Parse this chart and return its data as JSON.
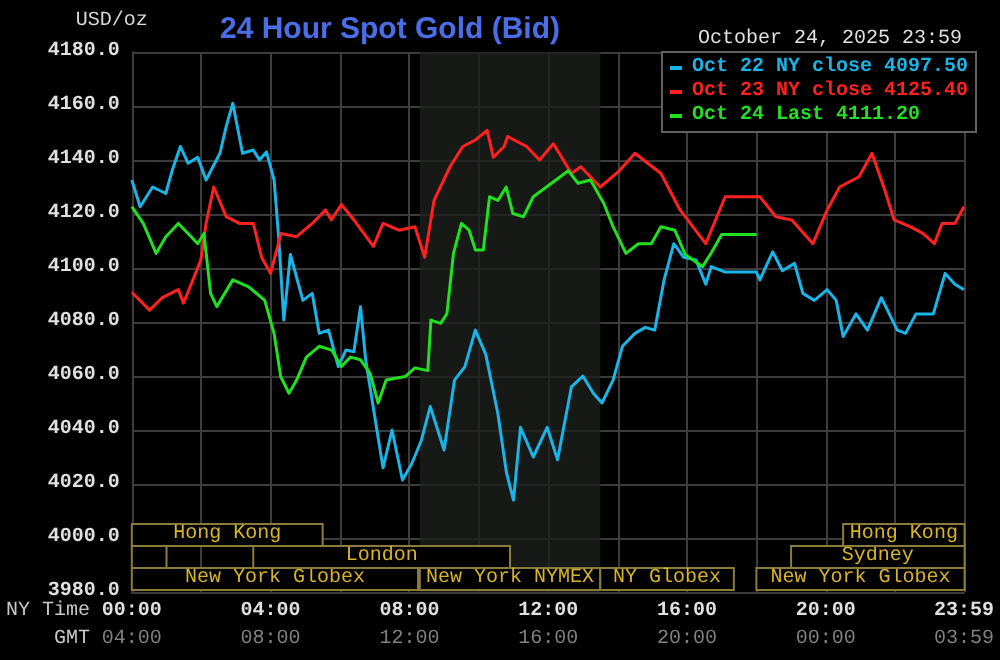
{
  "chart_data": {
    "type": "line",
    "title": "24 Hour Spot Gold (Bid)",
    "subtitle": "October 24, 2025 23:59",
    "ylabel": "USD/oz",
    "xlabel": "NY Time",
    "x2label": "GMT",
    "xlim": [
      0,
      23.983
    ],
    "xticks": [
      {
        "value": 0,
        "label": "00:00"
      },
      {
        "value": 2,
        "label": null
      },
      {
        "value": 4,
        "label": "04:00"
      },
      {
        "value": 6,
        "label": null
      },
      {
        "value": 8,
        "label": "08:00"
      },
      {
        "value": 10,
        "label": null
      },
      {
        "value": 12,
        "label": "12:00"
      },
      {
        "value": 14,
        "label": null
      },
      {
        "value": 16,
        "label": "16:00"
      },
      {
        "value": 18,
        "label": null
      },
      {
        "value": 20,
        "label": "20:00"
      },
      {
        "value": 22,
        "label": null
      },
      {
        "value": 23.983,
        "label": "23:59"
      }
    ],
    "x2lim": [
      "2025-10-24T04:00",
      "2025-10-25T03:59"
    ],
    "x2ticks": [
      {
        "value": "2025-10-24T04:00",
        "label": "04:00"
      },
      {
        "value": "2025-10-24T08:00",
        "label": "08:00"
      },
      {
        "value": "2025-10-24T12:00",
        "label": "12:00"
      },
      {
        "value": "2025-10-24T16:00",
        "label": "16:00"
      },
      {
        "value": "2025-10-24T20:00",
        "label": "20:00"
      },
      {
        "value": "2025-10-25T00:00",
        "label": "00:00"
      },
      {
        "value": "2025-10-25T03:59",
        "label": "03:59"
      }
    ],
    "ylim": [
      3980,
      4180
    ],
    "yticks": [
      {
        "value": 3980,
        "label": "3980.0"
      },
      {
        "value": 4000,
        "label": "4000.0"
      },
      {
        "value": 4020,
        "label": "4020.0"
      },
      {
        "value": 4040,
        "label": "4040.0"
      },
      {
        "value": 4060,
        "label": "4060.0"
      },
      {
        "value": 4080,
        "label": "4080.0"
      },
      {
        "value": 4100,
        "label": "4100.0"
      },
      {
        "value": 4120,
        "label": "4120.0"
      },
      {
        "value": 4140,
        "label": "4140.0"
      },
      {
        "value": 4160,
        "label": "4160.0"
      },
      {
        "value": 4180,
        "label": "4180.0"
      }
    ],
    "grid": true,
    "legend": "top right",
    "marker": "none",
    "line_style": "solid",
    "series": [
      {
        "name": "Oct 22 NY close 4097.50",
        "color": "#1ab4e6",
        "x": [
          0,
          0.24,
          0.6,
          0.98,
          1.16,
          1.4,
          1.62,
          1.9,
          2.14,
          2.54,
          2.72,
          2.91,
          3.19,
          3.5,
          3.68,
          3.88,
          4.1,
          4.24,
          4.38,
          4.57,
          4.93,
          5.2,
          5.4,
          5.67,
          5.95,
          6.17,
          6.4,
          6.59,
          6.74,
          7.05,
          7.24,
          7.5,
          7.8,
          8.07,
          8.34,
          8.6,
          9,
          9.3,
          9.6,
          9.9,
          10.2,
          10.55,
          10.8,
          11,
          11.2,
          11.57,
          11.97,
          12.27,
          12.67,
          13,
          13.3,
          13.55,
          13.87,
          14.14,
          14.5,
          14.8,
          15.07,
          15.34,
          15.62,
          15.9,
          16.26,
          16.54,
          16.7,
          17.1,
          18,
          18.1,
          18.47,
          18.75,
          19.1,
          19.34,
          19.67,
          20.04,
          20.3,
          20.5,
          20.87,
          21.2,
          21.6,
          22.06,
          22.3,
          22.6,
          23.1,
          23.44,
          23.72,
          23.98
        ],
        "values": [
          4132.6,
          4122.7,
          4130,
          4127.6,
          4136,
          4145,
          4138.8,
          4141,
          4132.6,
          4142.5,
          4152.4,
          4161,
          4142.5,
          4143.7,
          4140,
          4143,
          4132.6,
          4110,
          4080.7,
          4105,
          4088,
          4090.6,
          4075.8,
          4077,
          4063.5,
          4069.6,
          4069,
          4085.7,
          4066,
          4041,
          4026,
          4040,
          4021.5,
          4027.6,
          4036,
          4048.7,
          4032.6,
          4058.5,
          4063.5,
          4077,
          4068,
          4046,
          4024,
          4014,
          4041,
          4030,
          4041,
          4029,
          4056,
          4060,
          4053.6,
          4050,
          4058.5,
          4071,
          4075.8,
          4078,
          4077,
          4095.6,
          4109,
          4104,
          4103,
          4094,
          4100.5,
          4098.5,
          4098.5,
          4095.6,
          4106,
          4099,
          4101.7,
          4090.6,
          4088,
          4092,
          4088,
          4074.6,
          4083,
          4077,
          4089,
          4077,
          4075.8,
          4083,
          4083,
          4098,
          4094,
          4092
        ]
      },
      {
        "name": "Oct 23 NY close 4125.40",
        "color": "#ff2020",
        "x": [
          0,
          0.51,
          0.88,
          1.34,
          1.49,
          1.71,
          1.99,
          2.14,
          2.36,
          2.72,
          3.1,
          3.5,
          3.74,
          4,
          4.3,
          4.75,
          5.2,
          5.58,
          5.75,
          6.04,
          6.4,
          6.96,
          7.24,
          7.7,
          8.16,
          8.44,
          8.71,
          9.17,
          9.54,
          9.9,
          10.24,
          10.42,
          10.73,
          10.83,
          11.38,
          11.75,
          12.15,
          12.67,
          12.94,
          13.5,
          14.05,
          14.5,
          15.25,
          15.8,
          16.54,
          17.1,
          18.1,
          18.56,
          19.02,
          19.63,
          20.04,
          20.4,
          20.96,
          21.33,
          21.7,
          21.97,
          22.43,
          22.8,
          23.13,
          23.35,
          23.72,
          23.98
        ],
        "values": [
          4091,
          4084.4,
          4089,
          4092,
          4087,
          4094,
          4103,
          4116.5,
          4130,
          4119,
          4116.5,
          4116.5,
          4104,
          4098,
          4112.8,
          4111.6,
          4116.5,
          4121.5,
          4117.8,
          4123.5,
          4117.8,
          4108,
          4116.5,
          4114,
          4115.3,
          4104,
          4125,
          4137.5,
          4145,
          4147.4,
          4151,
          4141,
          4145,
          4148.7,
          4145,
          4140,
          4146,
          4135,
          4137.5,
          4130,
          4136,
          4142.5,
          4135,
          4121.5,
          4109,
          4126.4,
          4126.4,
          4119,
          4117.8,
          4109,
          4121.5,
          4130,
          4133.8,
          4142.5,
          4128.9,
          4117.8,
          4115.3,
          4112.8,
          4109,
          4116.5,
          4116.5,
          4122.7
        ]
      },
      {
        "name": "Oct 24 Last 4111.20",
        "color": "#20e020",
        "x": [
          0,
          0.33,
          0.7,
          0.98,
          1.34,
          1.71,
          1.9,
          2.08,
          2.27,
          2.45,
          2.91,
          3.37,
          3.83,
          4.1,
          4.29,
          4.53,
          4.75,
          5.03,
          5.4,
          5.76,
          6.04,
          6.3,
          6.59,
          6.87,
          7.1,
          7.33,
          7.88,
          8.16,
          8.53,
          8.62,
          8.9,
          9.08,
          9.27,
          9.5,
          9.72,
          9.9,
          10.13,
          10.31,
          10.55,
          10.79,
          10.98,
          11.29,
          11.57,
          11.95,
          12.58,
          12.86,
          13.22,
          13.6,
          13.87,
          14.24,
          14.6,
          14.97,
          15.25,
          15.65,
          15.95,
          16.45,
          16.69,
          17,
          18.01
        ],
        "values": [
          4122.7,
          4116.5,
          4105.4,
          4111.6,
          4116.5,
          4111.6,
          4109,
          4112.8,
          4090.6,
          4085.7,
          4095.6,
          4093,
          4088,
          4075.8,
          4059.8,
          4053.6,
          4058.5,
          4067,
          4071,
          4069.6,
          4063.5,
          4067,
          4066,
          4061,
          4050,
          4058.5,
          4059.8,
          4063,
          4062,
          4080.7,
          4079.5,
          4083,
          4105.4,
          4116.5,
          4114,
          4106.7,
          4106.7,
          4126.4,
          4125,
          4130,
          4120.2,
          4119,
          4126.4,
          4130,
          4136,
          4131.4,
          4132.6,
          4124,
          4115.3,
          4105.4,
          4109,
          4109,
          4115.3,
          4114,
          4105,
          4100.5,
          4105.4,
          4112.4,
          4112.4
        ]
      }
    ],
    "bands": [
      {
        "axis": "x",
        "from": 8.3,
        "to": 13.5,
        "color": "#1c1f1c"
      },
      {
        "axis": "x",
        "from": 0,
        "to": 8.25,
        "label": "New York Globex",
        "color": "#8c7c3c"
      },
      {
        "axis": "x",
        "from": 8.3,
        "to": 13.5,
        "label": "New York NYMEX",
        "color": "#8c7c3c"
      },
      {
        "axis": "x",
        "from": 13.5,
        "to": 17.35,
        "label": "NY Globex",
        "color": "#8c7c3c"
      },
      {
        "axis": "x",
        "from": 18,
        "to": 24,
        "label": "New York Globex",
        "color": "#8c7c3c"
      },
      {
        "axis": "x",
        "from": 0,
        "to": 1,
        "label": null,
        "color": "#8c7c3c"
      },
      {
        "axis": "x",
        "from": 3.5,
        "to": 10.9,
        "label": "London",
        "color": "#8c7c3c"
      },
      {
        "axis": "x",
        "from": 19,
        "to": 24,
        "label": "Sydney",
        "color": "#8c7c3c"
      },
      {
        "axis": "x",
        "from": 0,
        "to": 5.5,
        "label": "Hong Kong",
        "color": "#8c7c3c"
      },
      {
        "axis": "x",
        "from": 20.5,
        "to": 24,
        "label": "Hong Kong",
        "color": "#8c7c3c"
      }
    ]
  }
}
